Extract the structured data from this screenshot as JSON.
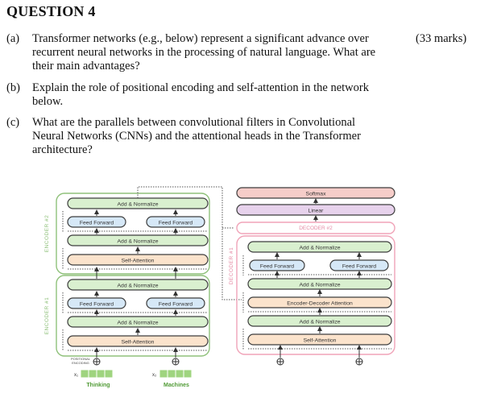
{
  "question": {
    "title": "QUESTION 4",
    "marks": "(33 marks)"
  },
  "parts": [
    {
      "label": "(a)",
      "lines": [
        "Transformer networks (e.g., below) represent a significant advance over",
        "recurrent neural networks in the processing of natural language.  What are",
        "their main advantages?"
      ]
    },
    {
      "label": "(b)",
      "lines": [
        "Explain the role of positional encoding and self-attention in the network",
        "below."
      ]
    },
    {
      "label": "(c)",
      "lines": [
        "What are the parallels between convolutional filters in Convolutional",
        "Neural Networks (CNNs) and the attentional heads in the Transformer",
        "architecture?"
      ]
    }
  ],
  "diagram": {
    "encoder1_label": "ENCODER #1",
    "encoder2_label": "ENCODER #2",
    "decoder1_label": "DECODER #1",
    "decoder2_label": "DECODER #2",
    "add_normalize": "Add & Normalize",
    "feed_forward": "Feed Forward",
    "self_attention": "Self-Attention",
    "enc_dec_attention": "Encoder-Decoder Attention",
    "softmax": "Softmax",
    "linear": "Linear",
    "positional_encoding_line1": "POSITIONAL",
    "positional_encoding_line2": "ENCODING",
    "x1": "x₁",
    "x2": "x₂",
    "word1": "Thinking",
    "word2": "Machines",
    "colors": {
      "encoder_border": "#8fc17a",
      "decoder_border": "#f0a3b8",
      "add_norm_fill": "#d9f0cf",
      "add_norm_stroke": "#3d3d3d",
      "ff_fill": "#d6e8f7",
      "self_attn_fill": "#fbe3cc",
      "softmax_fill": "#f6cdc9",
      "linear_fill": "#e7d2ec",
      "embed_fill": "#9fd47f"
    }
  }
}
